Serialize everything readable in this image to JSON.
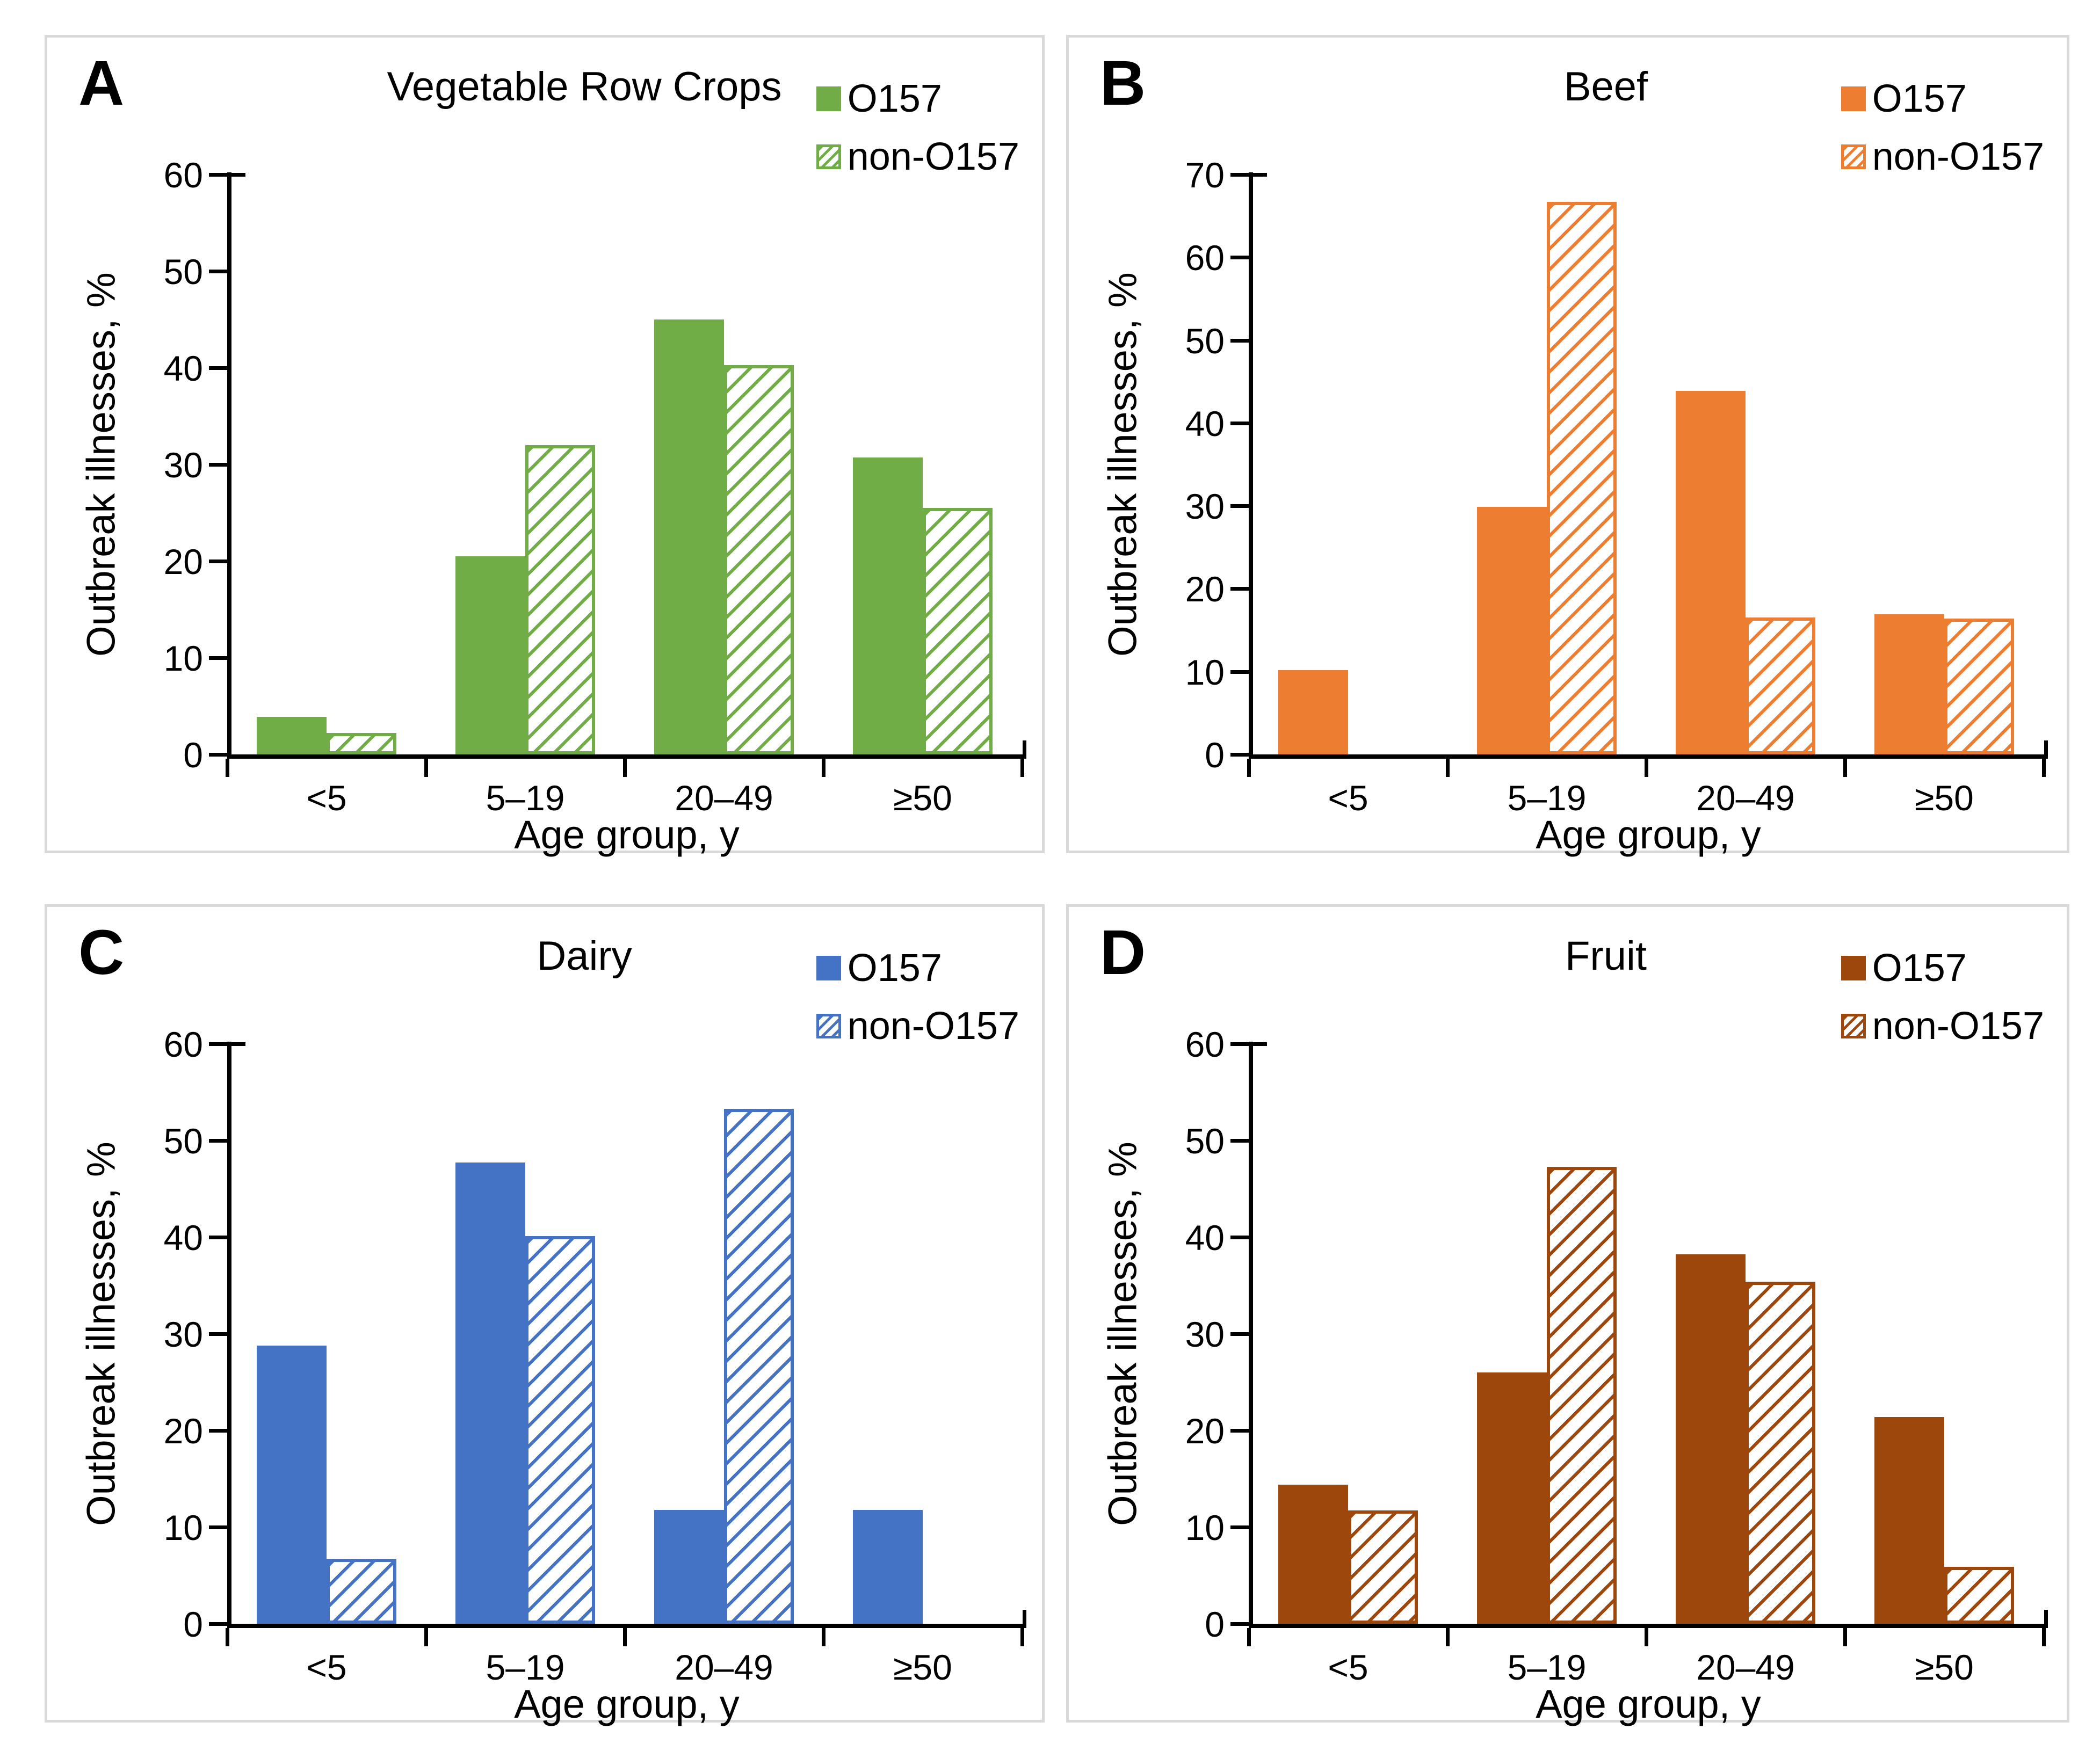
{
  "chart_data": [
    {
      "type": "bar",
      "panel": "A",
      "title": "Vegetable Row Crops",
      "color": "#70AD47",
      "xlabel": "Age group, y",
      "ylabel": "Outbreak illnesses, %",
      "categories": [
        "<5",
        "5–19",
        "20–49",
        "≥50"
      ],
      "series": [
        {
          "name": "O157",
          "style": "solid",
          "values": [
            3.9,
            20.5,
            45.0,
            30.7
          ]
        },
        {
          "name": "non-O157",
          "style": "hatched",
          "values": [
            2.2,
            32.0,
            40.3,
            25.5
          ]
        }
      ],
      "ylim": [
        0,
        60
      ],
      "ytick_step": 10,
      "grid": false,
      "legend_position": "top-right"
    },
    {
      "type": "bar",
      "panel": "B",
      "title": "Beef",
      "color": "#ED7D31",
      "xlabel": "Age group, y",
      "ylabel": "Outbreak illnesses, %",
      "categories": [
        "<5",
        "5–19",
        "20–49",
        "≥50"
      ],
      "series": [
        {
          "name": "O157",
          "style": "solid",
          "values": [
            10.2,
            29.9,
            43.9,
            16.9
          ]
        },
        {
          "name": "non-O157",
          "style": "hatched",
          "values": [
            0,
            66.7,
            16.5,
            16.4
          ]
        }
      ],
      "ylim": [
        0,
        70
      ],
      "ytick_step": 10,
      "grid": false,
      "legend_position": "top-right"
    },
    {
      "type": "bar",
      "panel": "C",
      "title": "Dairy",
      "color": "#4472C4",
      "xlabel": "Age group, y",
      "ylabel": "Outbreak illnesses, %",
      "categories": [
        "<5",
        "5–19",
        "20–49",
        "≥50"
      ],
      "series": [
        {
          "name": "O157",
          "style": "solid",
          "values": [
            28.8,
            47.7,
            11.8,
            11.8
          ]
        },
        {
          "name": "non-O157",
          "style": "hatched",
          "values": [
            6.7,
            40.1,
            53.3,
            0
          ]
        }
      ],
      "ylim": [
        0,
        60
      ],
      "ytick_step": 10,
      "grid": false,
      "legend_position": "top-right"
    },
    {
      "type": "bar",
      "panel": "D",
      "title": "Fruit",
      "color": "#9E470C",
      "xlabel": "Age group, y",
      "ylabel": "Outbreak illnesses, %",
      "categories": [
        "<5",
        "5–19",
        "20–49",
        "≥50"
      ],
      "series": [
        {
          "name": "O157",
          "style": "solid",
          "values": [
            14.4,
            26.0,
            38.2,
            21.4
          ]
        },
        {
          "name": "non-O157",
          "style": "hatched",
          "values": [
            11.7,
            47.3,
            35.4,
            5.9
          ]
        }
      ],
      "ylim": [
        0,
        60
      ],
      "ytick_step": 10,
      "grid": false,
      "legend_position": "top-right"
    }
  ]
}
